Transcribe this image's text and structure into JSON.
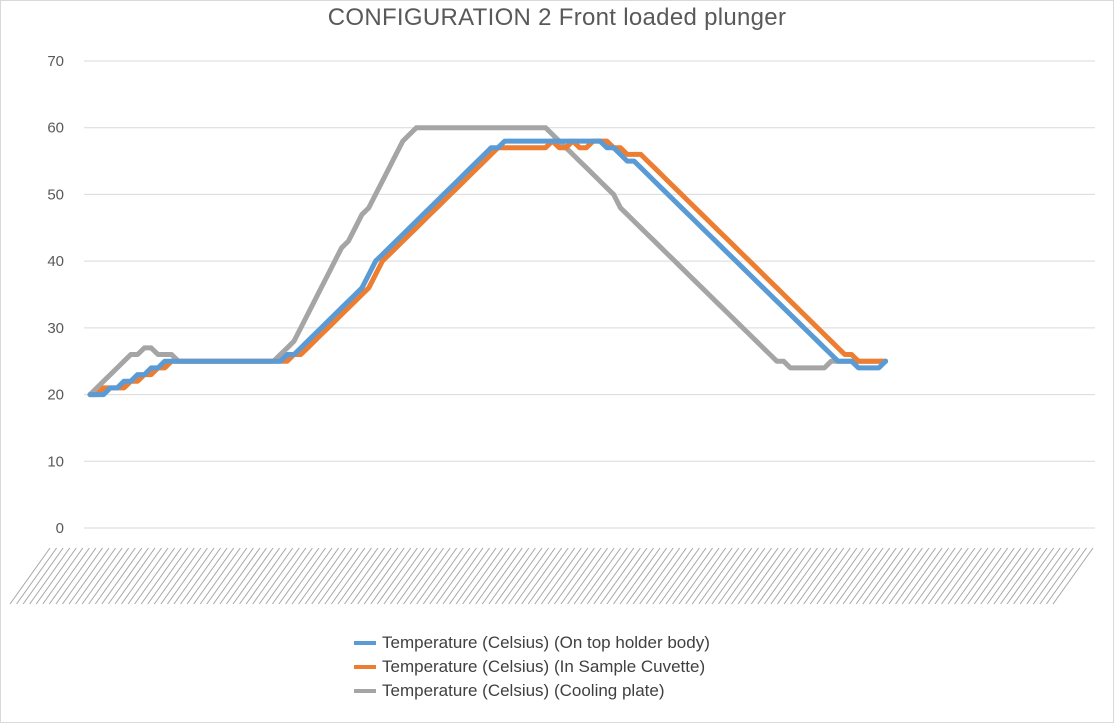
{
  "chart_data": {
    "type": "line",
    "title": "CONFIGURATION 2 Front loaded plunger",
    "xlabel": "",
    "ylabel": "",
    "ylim": [
      0,
      70
    ],
    "yticks": [
      0,
      10,
      20,
      30,
      40,
      50,
      60,
      70
    ],
    "grid": true,
    "legend_position": "bottom",
    "x_tick_count": 160,
    "x_ticks_note": "",
    "x": [
      0,
      1,
      2,
      3,
      4,
      5,
      6,
      7,
      8,
      9,
      10,
      11,
      12,
      13,
      14,
      15,
      16,
      17,
      18,
      19,
      20,
      21,
      22,
      23,
      24,
      25,
      26,
      27,
      28,
      29,
      30,
      31,
      32,
      33,
      34,
      35,
      36,
      37,
      38,
      39,
      40,
      41,
      42,
      43,
      44,
      45,
      46,
      47,
      48,
      49,
      50,
      51,
      52,
      53,
      54,
      55,
      56,
      57,
      58,
      59,
      60,
      61,
      62,
      63,
      64,
      65,
      66,
      67,
      68,
      69,
      70,
      71,
      72,
      73,
      74,
      75,
      76,
      77,
      78,
      79,
      80,
      81,
      82,
      83,
      84,
      85,
      86,
      87,
      88,
      89,
      90,
      91,
      92,
      93,
      94,
      95,
      96,
      97,
      98,
      99,
      100,
      101,
      102,
      103,
      104,
      105,
      106,
      107,
      108,
      109,
      110,
      111,
      112,
      113,
      114,
      115,
      116,
      117
    ],
    "series": [
      {
        "name": "Temperature (Celsius) (On top holder body)",
        "color": "#5b9bd5",
        "values": [
          20,
          20,
          20,
          21,
          21,
          22,
          22,
          23,
          23,
          24,
          24,
          25,
          25,
          25,
          25,
          25,
          25,
          25,
          25,
          25,
          25,
          25,
          25,
          25,
          25,
          25,
          25,
          25,
          25,
          26,
          26,
          27,
          28,
          29,
          30,
          31,
          32,
          33,
          34,
          35,
          36,
          38,
          40,
          41,
          42,
          43,
          44,
          45,
          46,
          47,
          48,
          49,
          50,
          51,
          52,
          53,
          54,
          55,
          56,
          57,
          57,
          58,
          58,
          58,
          58,
          58,
          58,
          58,
          58,
          58,
          58,
          58,
          58,
          58,
          58,
          58,
          57,
          57,
          56,
          55,
          55,
          54,
          53,
          52,
          51,
          50,
          49,
          48,
          47,
          46,
          45,
          44,
          43,
          42,
          41,
          40,
          39,
          38,
          37,
          36,
          35,
          34,
          33,
          32,
          31,
          30,
          29,
          28,
          27,
          26,
          25,
          25,
          25,
          24,
          24,
          24,
          24,
          25
        ]
      },
      {
        "name": "Temperature (Celsius) (In Sample Cuvette)",
        "color": "#ed7d31",
        "values": [
          20,
          20,
          21,
          21,
          21,
          21,
          22,
          22,
          23,
          23,
          24,
          24,
          25,
          25,
          25,
          25,
          25,
          25,
          25,
          25,
          25,
          25,
          25,
          25,
          25,
          25,
          25,
          25,
          25,
          25,
          26,
          26,
          27,
          28,
          29,
          30,
          31,
          32,
          33,
          34,
          35,
          36,
          38,
          40,
          41,
          42,
          43,
          44,
          45,
          46,
          47,
          48,
          49,
          50,
          51,
          52,
          53,
          54,
          55,
          56,
          57,
          57,
          57,
          57,
          57,
          57,
          57,
          57,
          58,
          57,
          57,
          58,
          57,
          57,
          58,
          58,
          58,
          57,
          57,
          56,
          56,
          56,
          55,
          54,
          53,
          52,
          51,
          50,
          49,
          48,
          47,
          46,
          45,
          44,
          43,
          42,
          41,
          40,
          39,
          38,
          37,
          36,
          35,
          34,
          33,
          32,
          31,
          30,
          29,
          28,
          27,
          26,
          26,
          25,
          25,
          25,
          25,
          25
        ]
      },
      {
        "name": "Temperature (Celsius) (Cooling plate)",
        "color": "#a5a5a5",
        "values": [
          20,
          21,
          22,
          23,
          24,
          25,
          26,
          26,
          27,
          27,
          26,
          26,
          26,
          25,
          25,
          25,
          25,
          25,
          25,
          25,
          25,
          25,
          25,
          25,
          25,
          25,
          25,
          25,
          26,
          27,
          28,
          30,
          32,
          34,
          36,
          38,
          40,
          42,
          43,
          45,
          47,
          48,
          50,
          52,
          54,
          56,
          58,
          59,
          60,
          60,
          60,
          60,
          60,
          60,
          60,
          60,
          60,
          60,
          60,
          60,
          60,
          60,
          60,
          60,
          60,
          60,
          60,
          60,
          59,
          58,
          57,
          56,
          55,
          54,
          53,
          52,
          51,
          50,
          48,
          47,
          46,
          45,
          44,
          43,
          42,
          41,
          40,
          39,
          38,
          37,
          36,
          35,
          34,
          33,
          32,
          31,
          30,
          29,
          28,
          27,
          26,
          25,
          25,
          24,
          24,
          24,
          24,
          24,
          24,
          25,
          25,
          25,
          25,
          25,
          25,
          25,
          25,
          25
        ]
      }
    ]
  }
}
